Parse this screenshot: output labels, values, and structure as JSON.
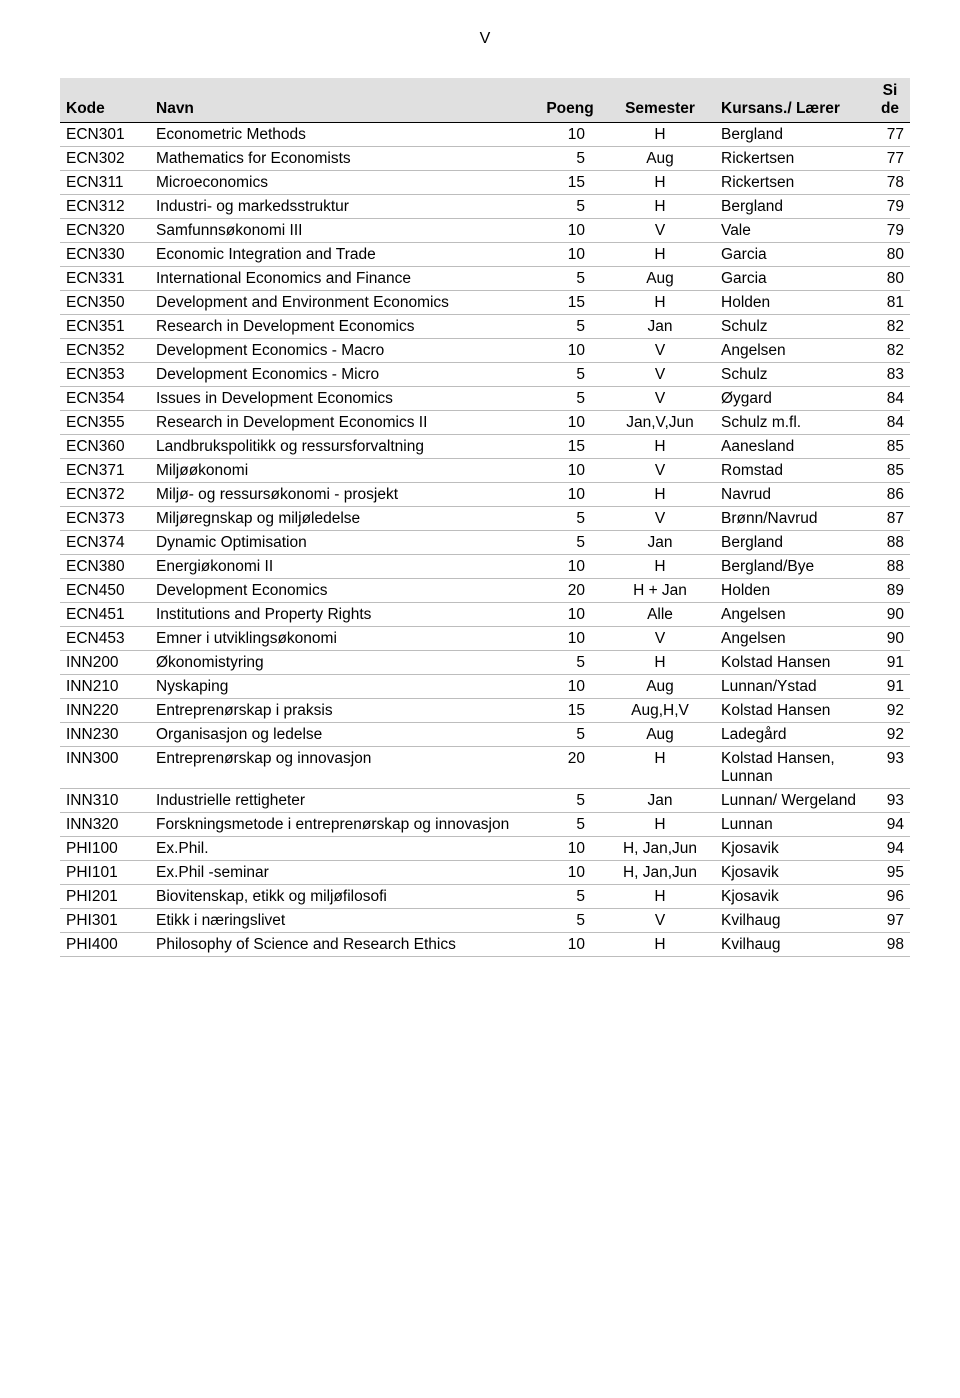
{
  "page_number_label": "V",
  "headers": {
    "kode": "Kode",
    "navn": "Navn",
    "poeng": "Poeng",
    "semester": "Semester",
    "laerer": "Kursans./ Lærer",
    "side": "Si de"
  },
  "rows": [
    {
      "kode": "ECN301",
      "navn": "Econometric Methods",
      "poeng": "10",
      "semester": "H",
      "laerer": "Bergland",
      "side": "77"
    },
    {
      "kode": "ECN302",
      "navn": "Mathematics for Economists",
      "poeng": "5",
      "semester": "Aug",
      "laerer": "Rickertsen",
      "side": "77"
    },
    {
      "kode": "ECN311",
      "navn": "Microeconomics",
      "poeng": "15",
      "semester": "H",
      "laerer": "Rickertsen",
      "side": "78"
    },
    {
      "kode": "ECN312",
      "navn": "Industri- og markedsstruktur",
      "poeng": "5",
      "semester": "H",
      "laerer": "Bergland",
      "side": "79"
    },
    {
      "kode": "ECN320",
      "navn": "Samfunnsøkonomi III",
      "poeng": "10",
      "semester": "V",
      "laerer": "Vale",
      "side": "79"
    },
    {
      "kode": "ECN330",
      "navn": "Economic Integration and Trade",
      "poeng": "10",
      "semester": "H",
      "laerer": "Garcia",
      "side": "80"
    },
    {
      "kode": "ECN331",
      "navn": "International Economics and Finance",
      "poeng": "5",
      "semester": "Aug",
      "laerer": "Garcia",
      "side": "80"
    },
    {
      "kode": "ECN350",
      "navn": "Development and Environment Economics",
      "poeng": "15",
      "semester": "H",
      "laerer": "Holden",
      "side": "81"
    },
    {
      "kode": "ECN351",
      "navn": "Research in Development Economics",
      "poeng": "5",
      "semester": "Jan",
      "laerer": "Schulz",
      "side": "82"
    },
    {
      "kode": "ECN352",
      "navn": "Development Economics - Macro",
      "poeng": "10",
      "semester": "V",
      "laerer": "Angelsen",
      "side": "82"
    },
    {
      "kode": "ECN353",
      "navn": "Development Economics - Micro",
      "poeng": "5",
      "semester": "V",
      "laerer": "Schulz",
      "side": "83"
    },
    {
      "kode": "ECN354",
      "navn": "Issues in Development Economics",
      "poeng": "5",
      "semester": "V",
      "laerer": "Øygard",
      "side": "84"
    },
    {
      "kode": "ECN355",
      "navn": "Research in Development Economics II",
      "poeng": "10",
      "semester": "Jan,V,Jun",
      "laerer": "Schulz m.fl.",
      "side": "84"
    },
    {
      "kode": "ECN360",
      "navn": "Landbrukspolitikk og ressursforvaltning",
      "poeng": "15",
      "semester": "H",
      "laerer": "Aanesland",
      "side": "85"
    },
    {
      "kode": "ECN371",
      "navn": "Miljøøkonomi",
      "poeng": "10",
      "semester": "V",
      "laerer": "Romstad",
      "side": "85"
    },
    {
      "kode": "ECN372",
      "navn": "Miljø- og ressursøkonomi - prosjekt",
      "poeng": "10",
      "semester": "H",
      "laerer": "Navrud",
      "side": "86"
    },
    {
      "kode": "ECN373",
      "navn": "Miljøregnskap og miljøledelse",
      "poeng": "5",
      "semester": "V",
      "laerer": "Brønn/Navrud",
      "side": "87"
    },
    {
      "kode": "ECN374",
      "navn": "Dynamic Optimisation",
      "poeng": "5",
      "semester": "Jan",
      "laerer": "Bergland",
      "side": "88"
    },
    {
      "kode": "ECN380",
      "navn": "Energiøkonomi II",
      "poeng": "10",
      "semester": "H",
      "laerer": "Bergland/Bye",
      "side": "88"
    },
    {
      "kode": "ECN450",
      "navn": "Development Economics",
      "poeng": "20",
      "semester": "H + Jan",
      "laerer": "Holden",
      "side": "89"
    },
    {
      "kode": "ECN451",
      "navn": "Institutions and Property Rights",
      "poeng": "10",
      "semester": "Alle",
      "laerer": "Angelsen",
      "side": "90"
    },
    {
      "kode": "ECN453",
      "navn": "Emner i utviklingsøkonomi",
      "poeng": "10",
      "semester": "V",
      "laerer": "Angelsen",
      "side": "90"
    },
    {
      "kode": "INN200",
      "navn": "Økonomistyring",
      "poeng": "5",
      "semester": "H",
      "laerer": "Kolstad Hansen",
      "side": "91"
    },
    {
      "kode": "INN210",
      "navn": "Nyskaping",
      "poeng": "10",
      "semester": "Aug",
      "laerer": "Lunnan/Ystad",
      "side": "91"
    },
    {
      "kode": "INN220",
      "navn": "Entreprenørskap i praksis",
      "poeng": "15",
      "semester": "Aug,H,V",
      "laerer": "Kolstad Hansen",
      "side": "92"
    },
    {
      "kode": "INN230",
      "navn": "Organisasjon og ledelse",
      "poeng": "5",
      "semester": "Aug",
      "laerer": "Ladegård",
      "side": "92"
    },
    {
      "kode": "INN300",
      "navn": "Entreprenørskap og innovasjon",
      "poeng": "20",
      "semester": "H",
      "laerer": "Kolstad Hansen, Lunnan",
      "side": "93"
    },
    {
      "kode": "INN310",
      "navn": "Industrielle rettigheter",
      "poeng": "5",
      "semester": "Jan",
      "laerer": "Lunnan/ Wergeland",
      "side": "93"
    },
    {
      "kode": "INN320",
      "navn": "Forskningsmetode i entreprenørskap og innovasjon",
      "poeng": "5",
      "semester": "H",
      "laerer": "Lunnan",
      "side": "94"
    },
    {
      "kode": "PHI100",
      "navn": "Ex.Phil.",
      "poeng": "10",
      "semester": "H, Jan,Jun",
      "laerer": "Kjosavik",
      "side": "94"
    },
    {
      "kode": "PHI101",
      "navn": "Ex.Phil -seminar",
      "poeng": "10",
      "semester": "H, Jan,Jun",
      "laerer": "Kjosavik",
      "side": "95"
    },
    {
      "kode": "PHI201",
      "navn": "Biovitenskap, etikk og miljøfilosofi",
      "poeng": "5",
      "semester": "H",
      "laerer": "Kjosavik",
      "side": "96"
    },
    {
      "kode": "PHI301",
      "navn": "Etikk i næringslivet",
      "poeng": "5",
      "semester": "V",
      "laerer": "Kvilhaug",
      "side": "97"
    },
    {
      "kode": "PHI400",
      "navn": "Philosophy of Science and Research Ethics",
      "poeng": "10",
      "semester": "H",
      "laerer": "Kvilhaug",
      "side": "98"
    }
  ]
}
